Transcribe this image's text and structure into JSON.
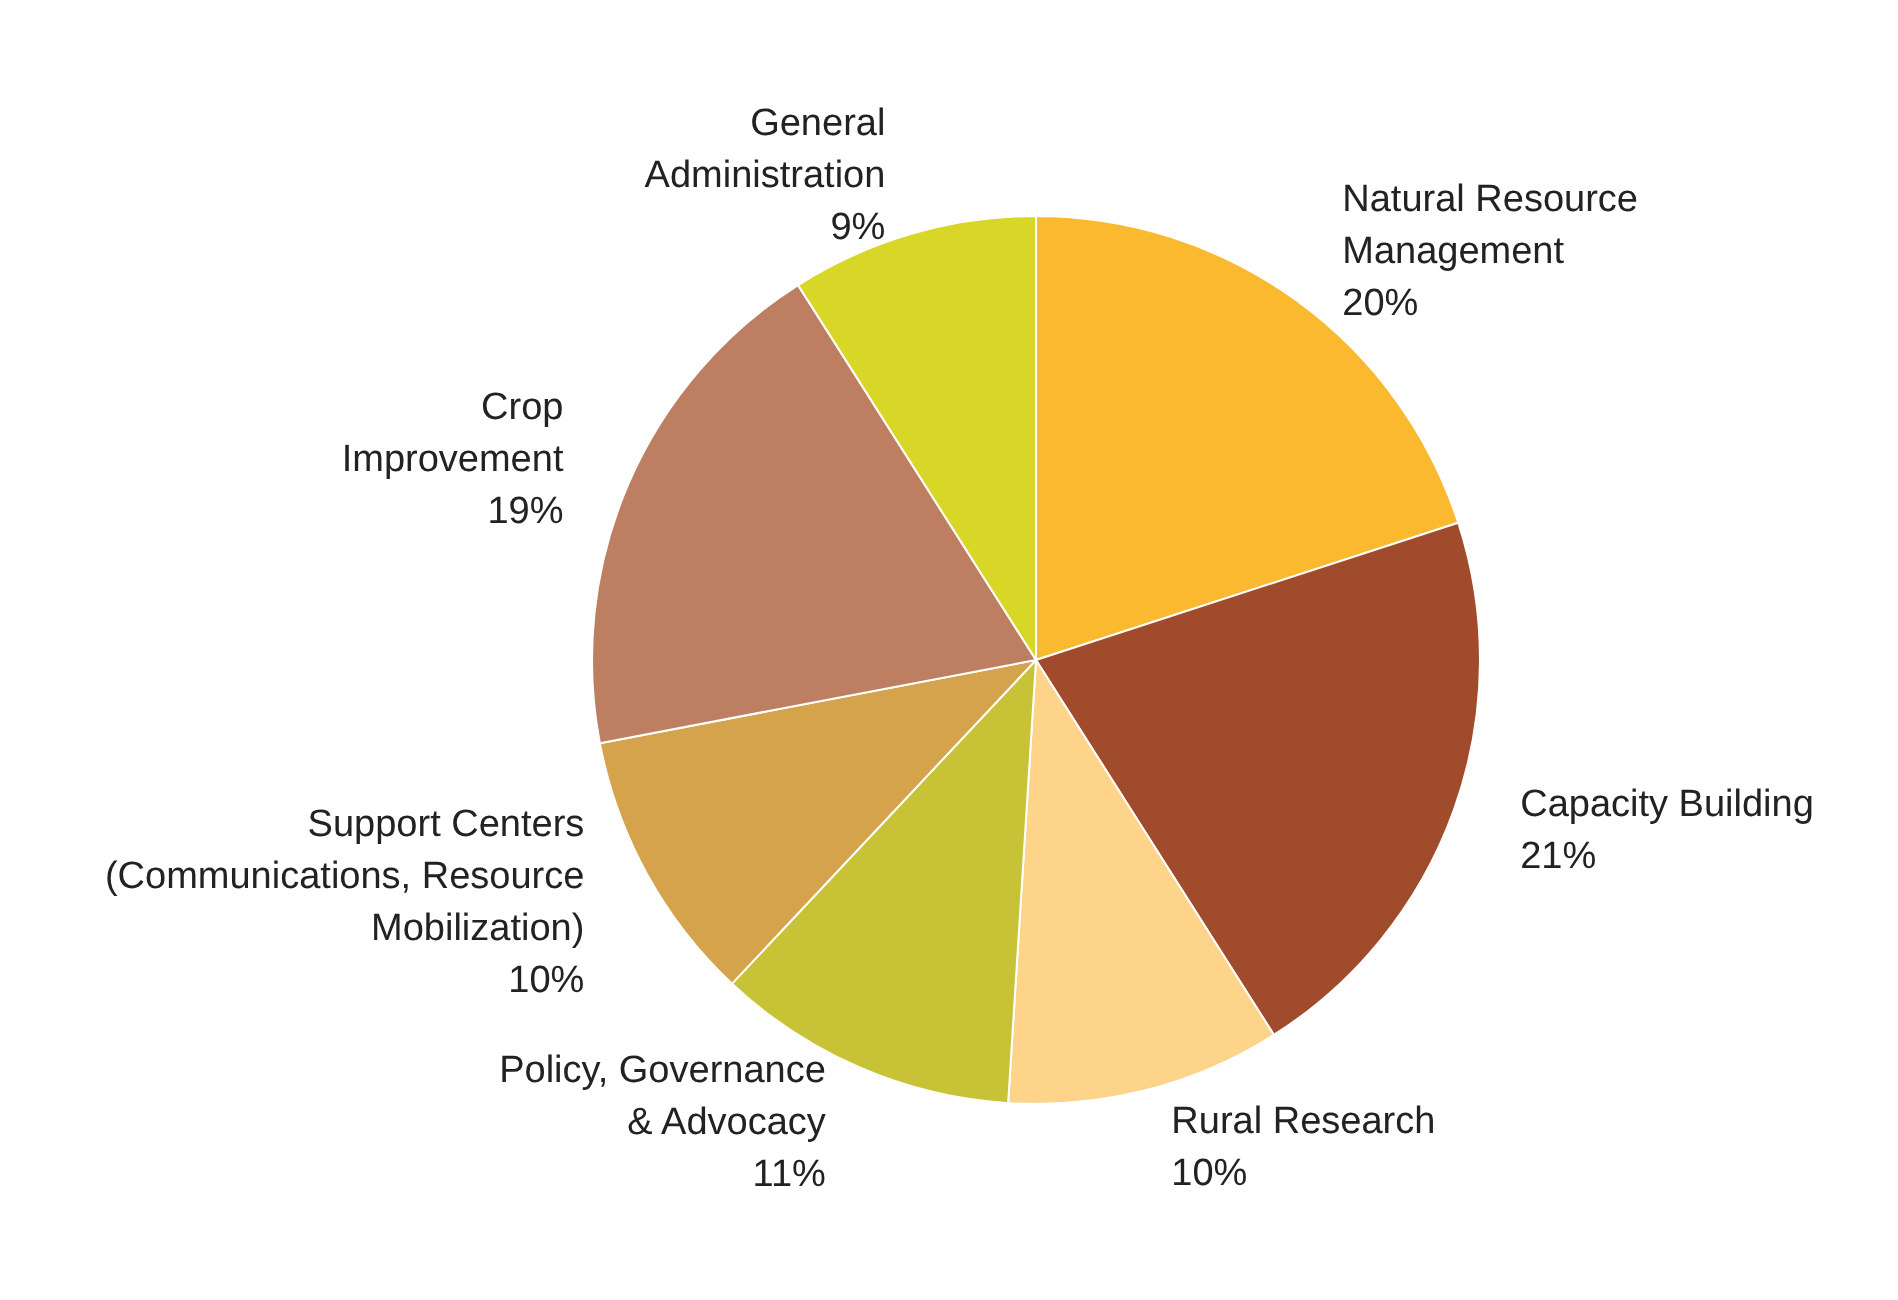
{
  "chart_data": {
    "type": "pie",
    "categories": [
      "Natural Resource\nManagement",
      "Capacity Building",
      "Rural Research",
      "Policy, Governance\n& Advocacy",
      "Support Centers\n(Communications, Resource\nMobilization)",
      "Crop\nImprovement",
      "General\nAdministration"
    ],
    "values": [
      20,
      21,
      10,
      11,
      10,
      19,
      9
    ],
    "value_labels": [
      "20%",
      "21%",
      "10%",
      "11%",
      "10%",
      "19%",
      "9%"
    ],
    "colors": [
      "#fbb930",
      "#a04c2c",
      "#fdd48a",
      "#c8c236",
      "#d4a34c",
      "#bd7e62",
      "#d8d626"
    ]
  }
}
